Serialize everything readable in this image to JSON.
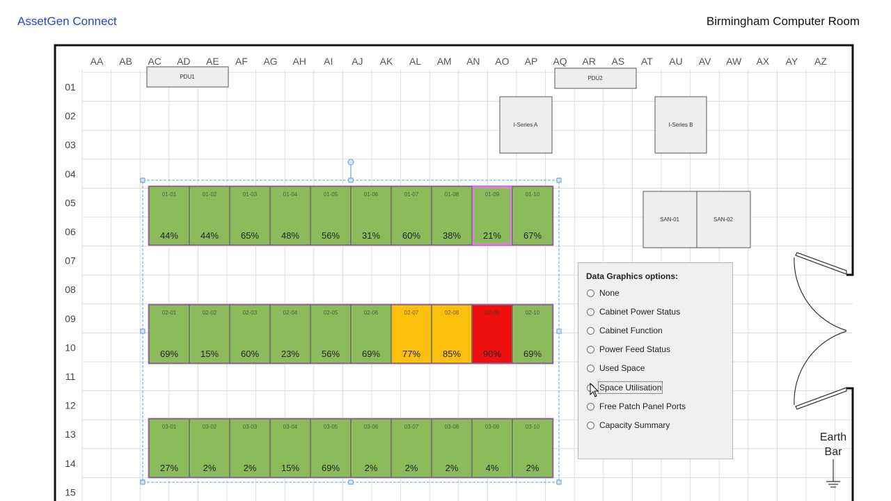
{
  "header": {
    "app_title": "AssetGen Connect",
    "room_title": "Birmingham Computer Room"
  },
  "grid": {
    "columns": [
      "AA",
      "AB",
      "AC",
      "AD",
      "AE",
      "AF",
      "AG",
      "AH",
      "AI",
      "AJ",
      "AK",
      "AL",
      "AM",
      "AN",
      "AO",
      "AP",
      "AQ",
      "AR",
      "AS",
      "AT",
      "AU",
      "AV",
      "AW",
      "AX",
      "AY",
      "AZ"
    ],
    "rows": [
      "01",
      "02",
      "03",
      "04",
      "05",
      "06",
      "07",
      "08",
      "09",
      "10",
      "11",
      "12",
      "13",
      "14",
      "15"
    ]
  },
  "equipment": {
    "pdu1": "PDU1",
    "pdu2": "PDU2",
    "iseries_a": "I-Series A",
    "iseries_b": "I-Series B",
    "san01": "SAN-01",
    "san02": "SAN-02"
  },
  "colors": {
    "normal": "#8cbb5c",
    "warning": "#fbbf0d",
    "critical": "#ee1010",
    "selected_border": "#e07ee0"
  },
  "cabinet_rows": [
    {
      "cabinets": [
        {
          "id": "01-01",
          "pct": "44%",
          "status": "normal"
        },
        {
          "id": "01-02",
          "pct": "44%",
          "status": "normal"
        },
        {
          "id": "01-03",
          "pct": "65%",
          "status": "normal"
        },
        {
          "id": "01-04",
          "pct": "48%",
          "status": "normal"
        },
        {
          "id": "01-05",
          "pct": "56%",
          "status": "normal"
        },
        {
          "id": "01-06",
          "pct": "31%",
          "status": "normal"
        },
        {
          "id": "01-07",
          "pct": "60%",
          "status": "normal"
        },
        {
          "id": "01-08",
          "pct": "38%",
          "status": "normal"
        },
        {
          "id": "01-09",
          "pct": "21%",
          "status": "normal"
        },
        {
          "id": "01-10",
          "pct": "67%",
          "status": "normal"
        }
      ]
    },
    {
      "cabinets": [
        {
          "id": "02-01",
          "pct": "69%",
          "status": "normal"
        },
        {
          "id": "02-02",
          "pct": "15%",
          "status": "normal"
        },
        {
          "id": "02-03",
          "pct": "60%",
          "status": "normal"
        },
        {
          "id": "02-04",
          "pct": "23%",
          "status": "normal"
        },
        {
          "id": "02-05",
          "pct": "56%",
          "status": "normal"
        },
        {
          "id": "02-06",
          "pct": "69%",
          "status": "normal"
        },
        {
          "id": "02-07",
          "pct": "77%",
          "status": "warning"
        },
        {
          "id": "02-08",
          "pct": "85%",
          "status": "warning"
        },
        {
          "id": "02-09",
          "pct": "90%",
          "status": "critical"
        },
        {
          "id": "02-10",
          "pct": "69%",
          "status": "normal"
        }
      ]
    },
    {
      "cabinets": [
        {
          "id": "03-01",
          "pct": "27%",
          "status": "normal"
        },
        {
          "id": "03-02",
          "pct": "2%",
          "status": "normal"
        },
        {
          "id": "03-03",
          "pct": "2%",
          "status": "normal"
        },
        {
          "id": "03-04",
          "pct": "15%",
          "status": "normal"
        },
        {
          "id": "03-05",
          "pct": "69%",
          "status": "normal"
        },
        {
          "id": "03-06",
          "pct": "2%",
          "status": "normal"
        },
        {
          "id": "03-07",
          "pct": "2%",
          "status": "normal"
        },
        {
          "id": "03-08",
          "pct": "2%",
          "status": "normal"
        },
        {
          "id": "03-09",
          "pct": "4%",
          "status": "normal"
        },
        {
          "id": "03-10",
          "pct": "2%",
          "status": "normal"
        }
      ]
    }
  ],
  "data_graphics": {
    "title": "Data Graphics options:",
    "options": [
      "None",
      "Cabinet Power Status",
      "Cabinet Function",
      "Power Feed Status",
      "Used Space",
      "Space Utilisation",
      "Free Patch Panel Ports",
      "Capacity Summary"
    ]
  },
  "earth_bar": {
    "line1": "Earth",
    "line2": "Bar"
  }
}
